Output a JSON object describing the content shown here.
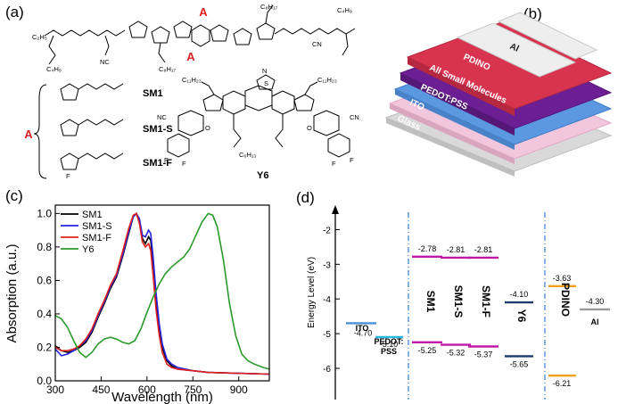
{
  "panels": {
    "a": "(a)",
    "b": "(b)",
    "c": "(c)",
    "d": "(d)"
  },
  "panel_a": {
    "substituent_marker": "A",
    "molecules": [
      "SM1",
      "SM1-S",
      "SM1-F",
      "Y6"
    ],
    "atom_labels": {
      "c2h5": "C₂H₅",
      "c4h9": "C₄H₉",
      "c6h13": "C₆H₁₃",
      "c8h17": "C₈H₁₇",
      "c11h23": "C₁₁H₂₃",
      "nc": "NC",
      "cn": "CN",
      "o": "O",
      "s": "S",
      "n": "N",
      "f": "F"
    }
  },
  "panel_b": {
    "layers": [
      "Al",
      "PDINO",
      "All Small Molecules",
      "PEDOT:PSS",
      "ITO",
      "Glass"
    ],
    "colors": {
      "al": "#e8e6e8",
      "pdino": "#d9344f",
      "asm": "#6b1f93",
      "pedot": "#5b98e0",
      "ito": "#f2c6dc",
      "glass": "#d9d9d9"
    }
  },
  "chart_data": [
    {
      "type": "line",
      "xlabel": "Wavelength (nm)",
      "ylabel": "Absorption (a.u.)",
      "xlim": [
        300,
        1000
      ],
      "ylim": [
        0.0,
        1.05
      ],
      "xticks": [
        300,
        450,
        600,
        750,
        900
      ],
      "yticks": [
        0.0,
        0.2,
        0.4,
        0.6,
        0.8,
        1.0
      ],
      "legend_position": "top-left",
      "series": [
        {
          "name": "SM1",
          "color": "#000000",
          "x": [
            300,
            320,
            340,
            360,
            380,
            400,
            420,
            440,
            460,
            480,
            500,
            520,
            540,
            555,
            565,
            575,
            585,
            595,
            605,
            612,
            620,
            630,
            640,
            650,
            665,
            680,
            700,
            750,
            800,
            900,
            1000
          ],
          "y": [
            0.21,
            0.18,
            0.17,
            0.18,
            0.2,
            0.23,
            0.29,
            0.38,
            0.46,
            0.55,
            0.62,
            0.74,
            0.88,
            0.98,
            1.0,
            0.96,
            0.85,
            0.82,
            0.86,
            0.84,
            0.7,
            0.48,
            0.32,
            0.2,
            0.12,
            0.09,
            0.07,
            0.06,
            0.05,
            0.045,
            0.04
          ]
        },
        {
          "name": "SM1-S",
          "color": "#2323e0",
          "x": [
            300,
            320,
            340,
            360,
            380,
            400,
            420,
            440,
            460,
            480,
            500,
            520,
            540,
            555,
            565,
            575,
            585,
            595,
            605,
            612,
            620,
            630,
            640,
            650,
            665,
            680,
            700,
            750,
            800,
            900,
            1000
          ],
          "y": [
            0.19,
            0.15,
            0.16,
            0.18,
            0.21,
            0.24,
            0.3,
            0.39,
            0.47,
            0.56,
            0.63,
            0.75,
            0.89,
            0.98,
            1.0,
            0.97,
            0.87,
            0.86,
            0.9,
            0.88,
            0.74,
            0.52,
            0.34,
            0.22,
            0.13,
            0.1,
            0.08,
            0.06,
            0.05,
            0.045,
            0.04
          ]
        },
        {
          "name": "SM1-F",
          "color": "#e01f1f",
          "x": [
            300,
            320,
            340,
            360,
            380,
            400,
            420,
            440,
            460,
            480,
            500,
            520,
            540,
            555,
            565,
            575,
            585,
            595,
            605,
            612,
            620,
            630,
            640,
            650,
            665,
            680,
            700,
            750,
            800,
            900,
            1000
          ],
          "y": [
            0.2,
            0.18,
            0.18,
            0.19,
            0.21,
            0.25,
            0.31,
            0.4,
            0.48,
            0.57,
            0.64,
            0.77,
            0.91,
            0.99,
            1.0,
            0.94,
            0.83,
            0.8,
            0.82,
            0.78,
            0.63,
            0.42,
            0.27,
            0.17,
            0.1,
            0.08,
            0.07,
            0.06,
            0.05,
            0.045,
            0.04
          ]
        },
        {
          "name": "Y6",
          "color": "#2a9b2a",
          "x": [
            300,
            320,
            340,
            360,
            380,
            400,
            420,
            440,
            460,
            480,
            500,
            520,
            540,
            560,
            580,
            600,
            620,
            640,
            660,
            680,
            700,
            720,
            740,
            760,
            780,
            800,
            815,
            830,
            850,
            870,
            890,
            910,
            930,
            950,
            980,
            1000
          ],
          "y": [
            0.39,
            0.37,
            0.32,
            0.24,
            0.17,
            0.14,
            0.17,
            0.22,
            0.25,
            0.26,
            0.25,
            0.23,
            0.22,
            0.24,
            0.31,
            0.41,
            0.5,
            0.58,
            0.64,
            0.68,
            0.71,
            0.74,
            0.79,
            0.87,
            0.95,
            1.0,
            0.99,
            0.92,
            0.72,
            0.46,
            0.27,
            0.16,
            0.12,
            0.1,
            0.08,
            0.07
          ]
        }
      ]
    },
    {
      "type": "bar",
      "ylabel": "Energy Level (eV)",
      "ylim": [
        -6.9,
        -1.5
      ],
      "yticks": [
        -2,
        -3,
        -4,
        -5,
        -6
      ],
      "levels": [
        {
          "name": "ITO",
          "values": [
            -4.7
          ],
          "labels": [
            "-4.70"
          ],
          "color": "#4a8fd8"
        },
        {
          "name": "PEDOT:PSS",
          "values": [
            -5.1
          ],
          "labels": [
            "-5.10"
          ],
          "color": "#2bb8e0"
        },
        {
          "name": "SM1",
          "values": [
            -2.78,
            -5.25
          ],
          "labels": [
            "-2.78",
            "-5.25"
          ],
          "color": "#c218a8"
        },
        {
          "name": "SM1-S",
          "values": [
            -2.81,
            -5.32
          ],
          "labels": [
            "-2.81",
            "-5.32"
          ],
          "color": "#c218a8"
        },
        {
          "name": "SM1-F",
          "values": [
            -2.81,
            -5.37
          ],
          "labels": [
            "-2.81",
            "-5.37"
          ],
          "color": "#c218a8"
        },
        {
          "name": "Y6",
          "values": [
            -4.1,
            -5.65
          ],
          "labels": [
            "-4.10",
            "-5.65"
          ],
          "color": "#1f3a6e"
        },
        {
          "name": "PDINO",
          "values": [
            -3.63,
            -6.21
          ],
          "labels": [
            "-3.63",
            "-6.21"
          ],
          "color": "#f0a020"
        },
        {
          "name": "Al",
          "values": [
            -4.3
          ],
          "labels": [
            "-4.30"
          ],
          "color": "#9a9a9a"
        }
      ],
      "category_labels": {
        "ito": "ITO",
        "pedot_line1": "PEDOT:",
        "pedot_line2": "PSS",
        "sm1": "SM1",
        "sm1s": "SM1-S",
        "sm1f": "SM1-F",
        "y6": "Y6",
        "pdino": "PDINO",
        "al": "Al"
      },
      "separator_color": "#3a7fd0"
    }
  ]
}
